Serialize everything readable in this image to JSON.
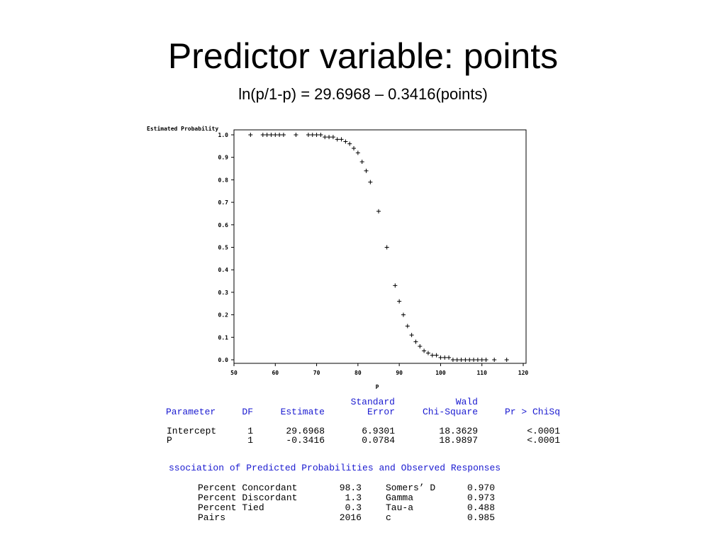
{
  "title": "Predictor variable: points",
  "subtitle": "ln(p/1-p) = 29.6968 – 0.3416(points)",
  "chart_data": {
    "type": "scatter",
    "y_label": "Estimated Probability",
    "x_label": "P",
    "color": "#000000",
    "x": [
      54,
      57,
      58,
      59,
      60,
      61,
      62,
      65,
      68,
      69,
      70,
      71,
      72,
      73,
      74,
      75,
      76,
      77,
      78,
      79,
      80,
      81,
      82,
      83,
      85,
      87,
      89,
      90,
      91,
      92,
      93,
      94,
      95,
      96,
      97,
      98,
      99,
      100,
      101,
      102,
      103,
      104,
      105,
      106,
      107,
      108,
      109,
      110,
      111,
      113,
      116
    ],
    "values": [
      1,
      1,
      1,
      1,
      1,
      1,
      1,
      1,
      1,
      1,
      1,
      1,
      0.99,
      0.99,
      0.99,
      0.98,
      0.98,
      0.97,
      0.96,
      0.94,
      0.92,
      0.88,
      0.84,
      0.79,
      0.66,
      0.5,
      0.33,
      0.26,
      0.2,
      0.15,
      0.11,
      0.08,
      0.06,
      0.04,
      0.03,
      0.02,
      0.02,
      0.01,
      0.01,
      0.01,
      0,
      0,
      0,
      0,
      0,
      0,
      0,
      0,
      0,
      0,
      0
    ],
    "xlim": [
      50,
      120
    ],
    "xticks": [
      50,
      60,
      70,
      80,
      90,
      100,
      110,
      120
    ],
    "ylim": [
      0,
      1
    ],
    "yticks": [
      {
        "value": 0,
        "label": "0.0"
      },
      0.1,
      0.2,
      0.3,
      0.4,
      0.5,
      0.6,
      0.7,
      0.8,
      0.9,
      {
        "value": 1,
        "label": "1.0"
      }
    ]
  },
  "parameter_estimates": {
    "header_top": [
      "Standard",
      "Wald"
    ],
    "header": [
      "Parameter",
      "DF",
      "Estimate",
      "Error",
      "Chi-Square",
      "Pr > ChiSq"
    ],
    "rows": [
      [
        "Intercept",
        "1",
        "29.6968",
        "6.9301",
        "18.3629",
        "<.0001"
      ],
      [
        "P",
        "1",
        "-0.3416",
        "0.0784",
        "18.9897",
        "<.0001"
      ]
    ]
  },
  "association": {
    "title": "ssociation of Predicted Probabilities and Observed Responses",
    "rows": [
      [
        "Percent Concordant",
        "98.3",
        "Somers’ D",
        "0.970"
      ],
      [
        "Percent Discordant",
        "1.3",
        "Gamma",
        "0.973"
      ],
      [
        "Percent Tied",
        "0.3",
        "Tau-a",
        "0.488"
      ],
      [
        "Pairs",
        "2016",
        "c",
        "0.985"
      ]
    ]
  }
}
